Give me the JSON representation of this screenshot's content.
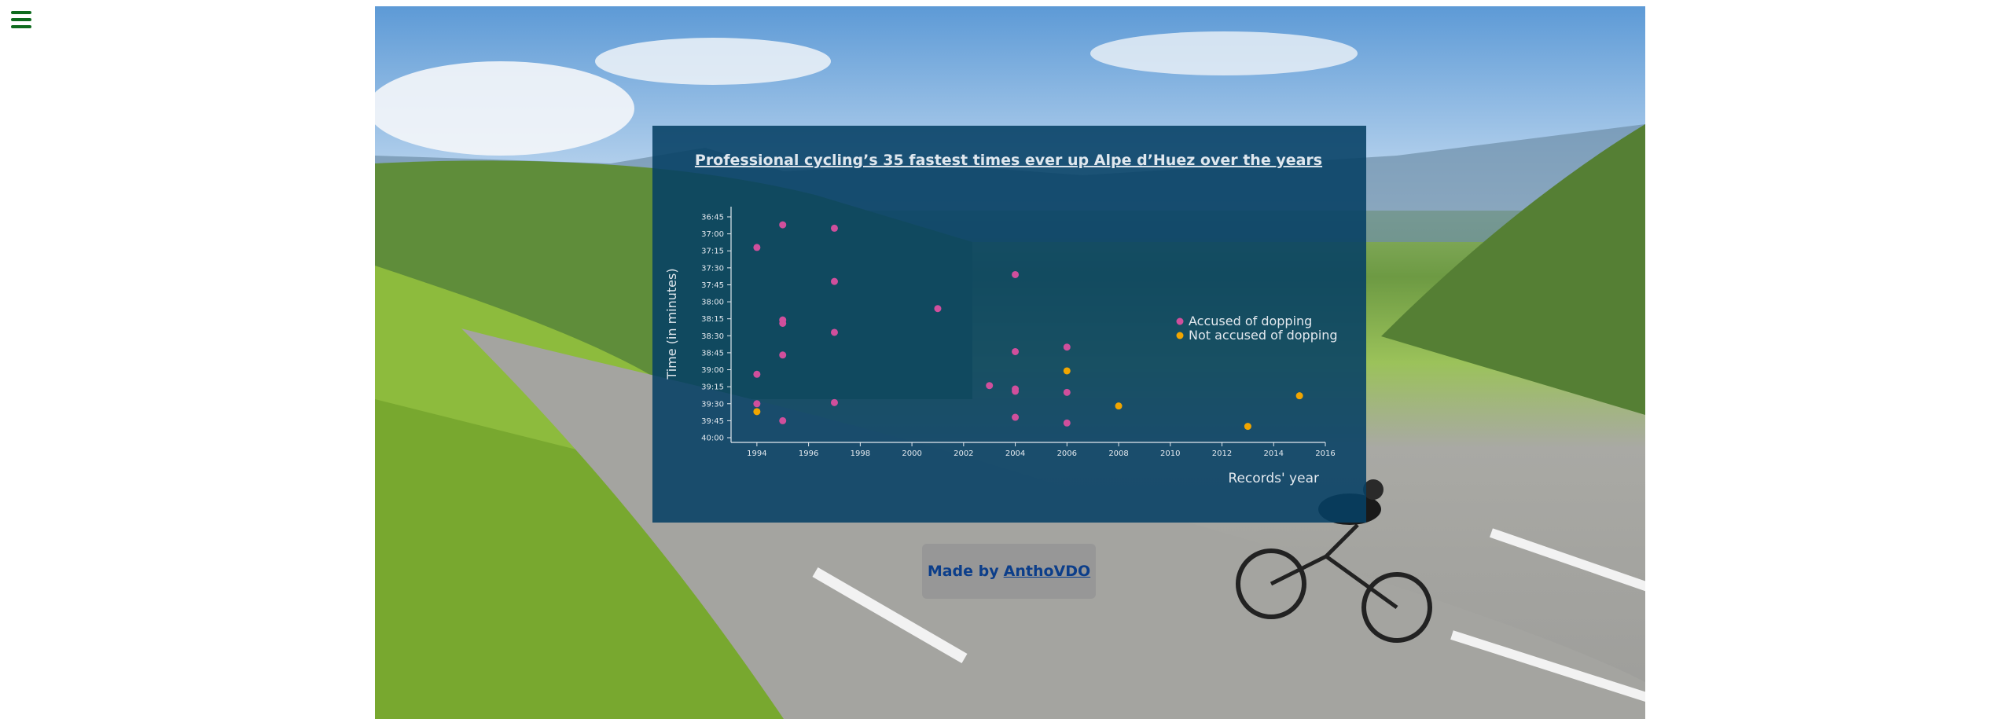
{
  "credit": {
    "prefix": "Made by",
    "author": "AnthoVDO"
  },
  "chart_data": {
    "type": "scatter",
    "title": "Professional cycling’s 35 fastest times ever up Alpe d’Huez over the years",
    "xlabel": "Records' year",
    "ylabel": "Time (in minutes)",
    "xlim": [
      1993,
      2016
    ],
    "x_ticks": [
      "1994",
      "1996",
      "1998",
      "2000",
      "2002",
      "2004",
      "2006",
      "2008",
      "2010",
      "2012",
      "2014",
      "2016"
    ],
    "y_ticks": [
      "36:45",
      "37:00",
      "37:15",
      "37:30",
      "37:45",
      "38:00",
      "38:15",
      "38:30",
      "38:45",
      "39:00",
      "39:15",
      "39:30",
      "39:45",
      "40:00"
    ],
    "ylim": [
      "36:45",
      "40:00"
    ],
    "y_reversed": true,
    "legend": {
      "position": "right",
      "entries": [
        "Accused of dopping",
        "Not accused of dopping"
      ]
    },
    "series": [
      {
        "name": "Accused of dopping",
        "color": "#d04f9c",
        "points": [
          {
            "x": 1995,
            "y": "36:52"
          },
          {
            "x": 1997,
            "y": "36:55"
          },
          {
            "x": 1994,
            "y": "37:12"
          },
          {
            "x": 1997,
            "y": "37:42"
          },
          {
            "x": 2004,
            "y": "37:36"
          },
          {
            "x": 2001,
            "y": "38:06"
          },
          {
            "x": 1995,
            "y": "38:16"
          },
          {
            "x": 1995,
            "y": "38:19"
          },
          {
            "x": 1997,
            "y": "38:27"
          },
          {
            "x": 2006,
            "y": "38:40"
          },
          {
            "x": 2004,
            "y": "38:44"
          },
          {
            "x": 1995,
            "y": "38:47"
          },
          {
            "x": 1994,
            "y": "39:04"
          },
          {
            "x": 2003,
            "y": "39:14"
          },
          {
            "x": 2004,
            "y": "39:17"
          },
          {
            "x": 2004,
            "y": "39:19"
          },
          {
            "x": 2006,
            "y": "39:20"
          },
          {
            "x": 1997,
            "y": "39:29"
          },
          {
            "x": 1994,
            "y": "39:30"
          },
          {
            "x": 2004,
            "y": "39:42"
          },
          {
            "x": 1995,
            "y": "39:45"
          },
          {
            "x": 2006,
            "y": "39:47"
          }
        ]
      },
      {
        "name": "Not accused of dopping",
        "color": "#f0a500",
        "points": [
          {
            "x": 2006,
            "y": "39:01"
          },
          {
            "x": 2015,
            "y": "39:23"
          },
          {
            "x": 2008,
            "y": "39:32"
          },
          {
            "x": 1994,
            "y": "39:37"
          },
          {
            "x": 2013,
            "y": "39:50"
          }
        ]
      }
    ]
  }
}
